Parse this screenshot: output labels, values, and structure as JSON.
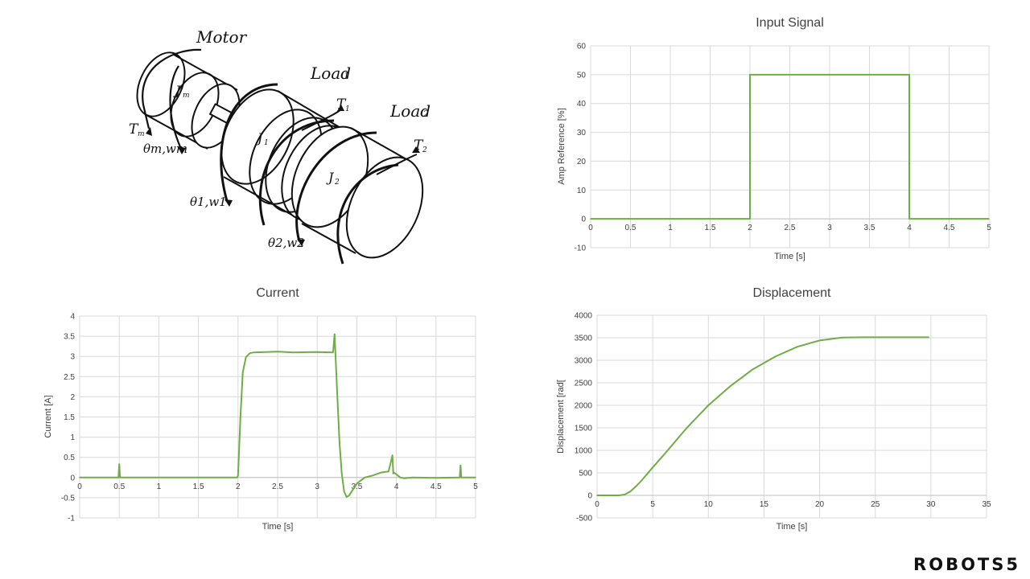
{
  "diagram": {
    "labels": {
      "motor": "Motor",
      "load1": "Load",
      "load1_sub": "1",
      "load2": "Load",
      "load2_sub": "2",
      "jm": "J",
      "jm_sub": "m",
      "j1": "J",
      "j1_sub": "1",
      "j2": "J",
      "j2_sub": "2",
      "tm": "T",
      "tm_sub": "m",
      "t1": "T",
      "t1_sub": "1",
      "t2": "T",
      "t2_sub": "2",
      "theta_m": "θm,wm",
      "theta_1": "θ1,w1",
      "theta_2": "θ2,w2"
    }
  },
  "brand": "ROBOTS5",
  "chart_data": [
    {
      "id": "input",
      "type": "line",
      "title": "Input Signal",
      "xlabel": "Time [s]",
      "ylabel": "Amp Reference  [%]",
      "xlim": [
        0,
        5
      ],
      "ylim": [
        -10,
        60
      ],
      "xticks": [
        0,
        0.5,
        1,
        1.5,
        2,
        2.5,
        3,
        3.5,
        4,
        4.5,
        5
      ],
      "yticks": [
        -10,
        0,
        10,
        20,
        30,
        40,
        50,
        60
      ],
      "grid": true,
      "color": "#70ad47",
      "x": [
        0,
        2,
        2,
        4,
        4,
        5
      ],
      "y": [
        0,
        0,
        50,
        50,
        0,
        0
      ]
    },
    {
      "id": "current",
      "type": "line",
      "title": "Current",
      "xlabel": "Time [s]",
      "ylabel": "Current [A]",
      "xlim": [
        0,
        5
      ],
      "ylim": [
        -1,
        4
      ],
      "xticks": [
        0,
        0.5,
        1,
        1.5,
        2,
        2.5,
        3,
        3.5,
        4,
        4.5,
        5
      ],
      "yticks": [
        -1,
        -0.5,
        0,
        0.5,
        1,
        1.5,
        2,
        2.5,
        3,
        3.5,
        4
      ],
      "grid": true,
      "color": "#70ad47",
      "x": [
        0,
        0.49,
        0.5,
        0.51,
        1.0,
        1.5,
        1.99,
        2.0,
        2.03,
        2.06,
        2.1,
        2.15,
        2.2,
        2.5,
        2.7,
        3.0,
        3.2,
        3.22,
        3.23,
        3.25,
        3.28,
        3.31,
        3.34,
        3.37,
        3.4,
        3.45,
        3.5,
        3.6,
        3.7,
        3.8,
        3.9,
        3.95,
        3.96,
        3.97,
        4.0,
        4.05,
        4.1,
        4.2,
        4.5,
        4.8,
        4.81,
        4.82,
        5.0
      ],
      "y": [
        0,
        0,
        0.33,
        0,
        0,
        0,
        0,
        0.05,
        1.5,
        2.6,
        2.98,
        3.08,
        3.1,
        3.12,
        3.1,
        3.11,
        3.1,
        3.55,
        3.1,
        2.2,
        0.9,
        0.1,
        -0.35,
        -0.48,
        -0.45,
        -0.3,
        -0.15,
        0.0,
        0.05,
        0.12,
        0.15,
        0.55,
        0.1,
        0.12,
        0.08,
        0.0,
        -0.02,
        0.0,
        -0.01,
        0.0,
        0.3,
        0.0,
        0.0
      ]
    },
    {
      "id": "displacement",
      "type": "line",
      "title": "Displacement",
      "xlabel": "Time [s]",
      "ylabel": "Displacement [rad[",
      "xlim": [
        0,
        35
      ],
      "ylim": [
        -500,
        4000
      ],
      "xticks": [
        0,
        5,
        10,
        15,
        20,
        25,
        30,
        35
      ],
      "yticks": [
        -500,
        0,
        500,
        1000,
        1500,
        2000,
        2500,
        3000,
        3500,
        4000
      ],
      "grid": true,
      "color": "#70ad47",
      "x": [
        0,
        2,
        2.5,
        3,
        3.5,
        4,
        5,
        6,
        8,
        10,
        12,
        14,
        16,
        18,
        20,
        22,
        24,
        26,
        27,
        28,
        29.8
      ],
      "y": [
        0,
        0,
        20,
        90,
        200,
        330,
        620,
        900,
        1480,
        2000,
        2430,
        2800,
        3080,
        3300,
        3440,
        3505,
        3510,
        3510,
        3510,
        3510,
        3510
      ]
    }
  ]
}
